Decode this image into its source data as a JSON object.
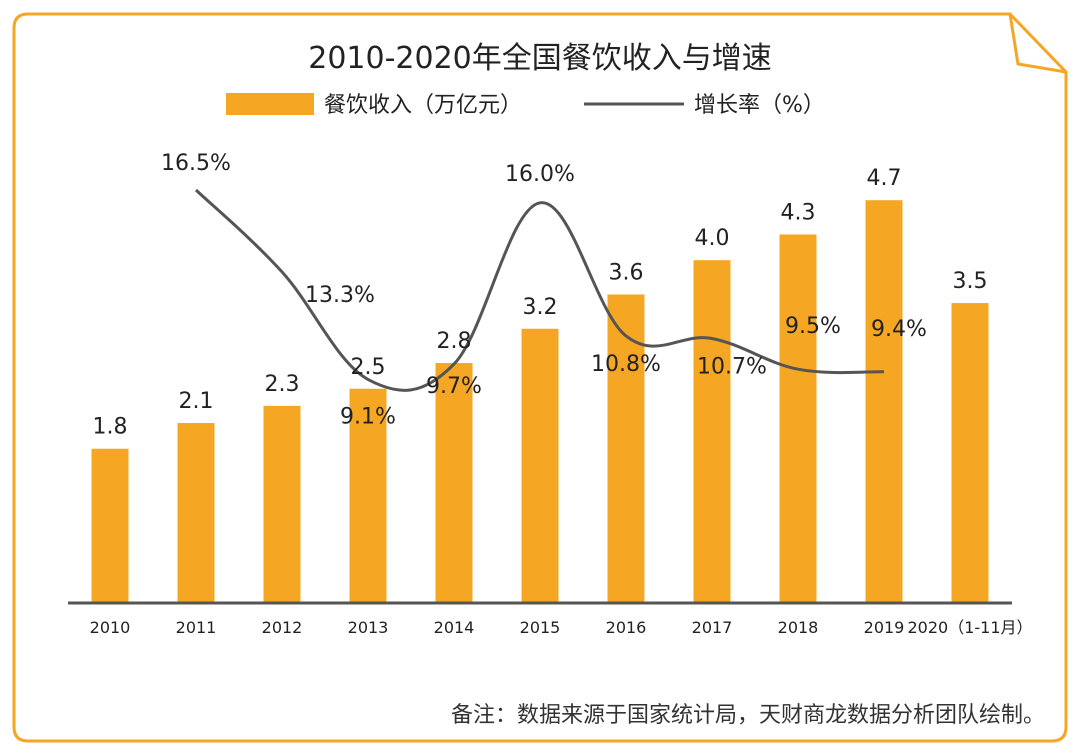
{
  "chart_data": {
    "type": "bar",
    "title": "2010-2020年全国餐饮收入与增速",
    "legend": [
      {
        "label": "餐饮收入（万亿元）",
        "kind": "bar"
      },
      {
        "label": "增长率（%）",
        "kind": "line"
      }
    ],
    "legend_position": "top-center",
    "categories": [
      "2010",
      "2011",
      "2012",
      "2013",
      "2014",
      "2015",
      "2016",
      "2017",
      "2018",
      "2019",
      "2020（1-11月）"
    ],
    "series": [
      {
        "name": "餐饮收入（万亿元）",
        "type": "bar",
        "values": [
          1.8,
          2.1,
          2.3,
          2.5,
          2.8,
          3.2,
          3.6,
          4.0,
          4.3,
          4.7,
          3.5
        ],
        "labels": [
          "1.8",
          "2.1",
          "2.3",
          "2.5",
          "2.8",
          "3.2",
          "3.6",
          "4.0",
          "4.3",
          "4.7",
          "3.5"
        ]
      },
      {
        "name": "增长率（%）",
        "type": "line",
        "values": [
          null,
          16.5,
          13.3,
          9.1,
          9.7,
          16.0,
          10.8,
          10.7,
          9.5,
          9.4,
          null
        ],
        "labels": [
          "",
          "16.5%",
          "13.3%",
          "9.1%",
          "9.7%",
          "16.0%",
          "10.8%",
          "10.7%",
          "9.5%",
          "9.4%",
          ""
        ]
      }
    ],
    "ylim": [
      0,
      5.5
    ],
    "line_ylim": [
      0,
      20
    ],
    "grid": false,
    "note": "备注：数据来源于国家统计局，天财商龙数据分析团队绘制。",
    "colors": {
      "bar": "#F5A623",
      "line": "#555555",
      "frame": "#F5A623",
      "axis": "#555555",
      "text": "#222222"
    }
  }
}
